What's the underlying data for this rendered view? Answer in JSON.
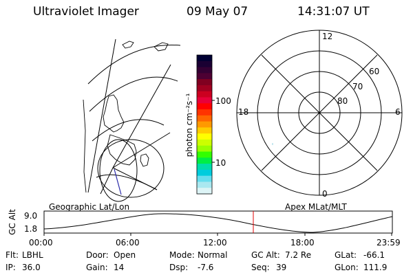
{
  "header": {
    "instrument": "Ultraviolet Imager",
    "date": "09 May 07",
    "time": "14:31:07 UT"
  },
  "colorbar": {
    "unit_label": "photon cm⁻²s⁻¹",
    "ticks": [
      "100",
      "10"
    ],
    "colors": [
      "#000033",
      "#1a0033",
      "#330033",
      "#4d0033",
      "#800020",
      "#a00020",
      "#cc0020",
      "#e8003a",
      "#ff0000",
      "#ff3300",
      "#ff6600",
      "#ff9900",
      "#ffcc00",
      "#ffff00",
      "#ccff00",
      "#99ff00",
      "#33ff00",
      "#00ee44",
      "#00ddaa",
      "#00ccdd",
      "#66ddee",
      "#aae8f0",
      "#ddf4f6"
    ]
  },
  "polar_plot": {
    "mlt_labels": {
      "top": "12",
      "left": "18",
      "right": "6",
      "bottom": "0"
    },
    "lat_labels": [
      "60",
      "70",
      "80"
    ]
  },
  "timeline": {
    "left_label": "Geographic Lat/Lon",
    "right_label": "Apex MLat/MLT",
    "axis_label": "GC Alt",
    "y_ticks": [
      "9.0",
      "1.8"
    ],
    "x_ticks": [
      "00:00",
      "06:00",
      "12:00",
      "18:00",
      "23:59"
    ],
    "current_marker_color": "#e00000"
  },
  "status": {
    "row1": [
      {
        "label": "Flt:",
        "value": "LBHL"
      },
      {
        "label": "Door:",
        "value": "Open"
      },
      {
        "label": "Mode:",
        "value": "Normal"
      },
      {
        "label": "GC Alt:",
        "value": "7.2 Re"
      },
      {
        "label": "GLat:",
        "value": "-66.1"
      }
    ],
    "row2": [
      {
        "label": "IP:",
        "value": "36.0"
      },
      {
        "label": "Gain:",
        "value": "14"
      },
      {
        "label": "Dsp:",
        "value": "-7.6"
      },
      {
        "label": "Seq:",
        "value": "39"
      },
      {
        "label": "GLon:",
        "value": "111.9"
      }
    ]
  }
}
